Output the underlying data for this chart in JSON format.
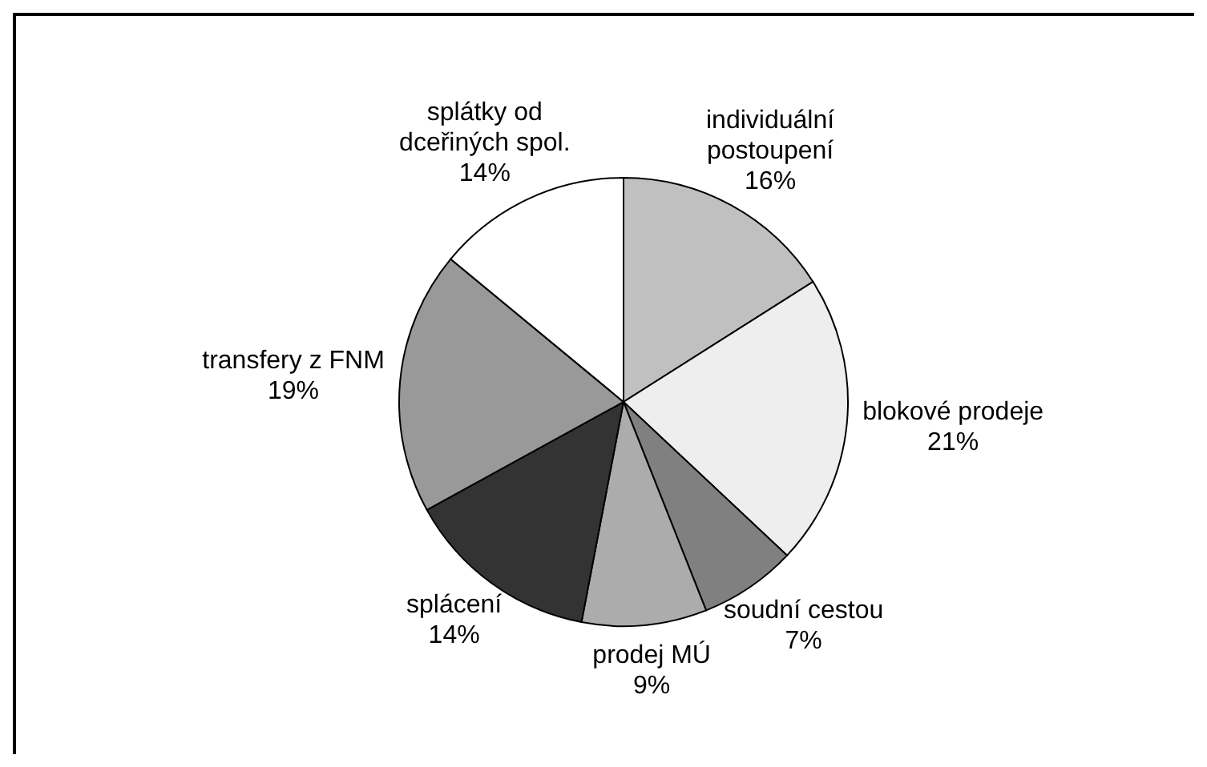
{
  "chart_data": {
    "type": "pie",
    "categories": [
      "individuální postoupení",
      "blokové prodeje",
      "soudní cestou",
      "prodej MÚ",
      "splácení",
      "transfery z FNM",
      "splátky od dceřiných spol."
    ],
    "values": [
      16,
      21,
      7,
      9,
      14,
      19,
      14
    ],
    "colors": [
      "#c0c0c0",
      "#eeeeee",
      "#808080",
      "#acacac",
      "#333333",
      "#999999",
      "#ffffff"
    ],
    "value_labels": [
      "16%",
      "21%",
      "7%",
      "9%",
      "14%",
      "19%",
      "14%"
    ]
  }
}
